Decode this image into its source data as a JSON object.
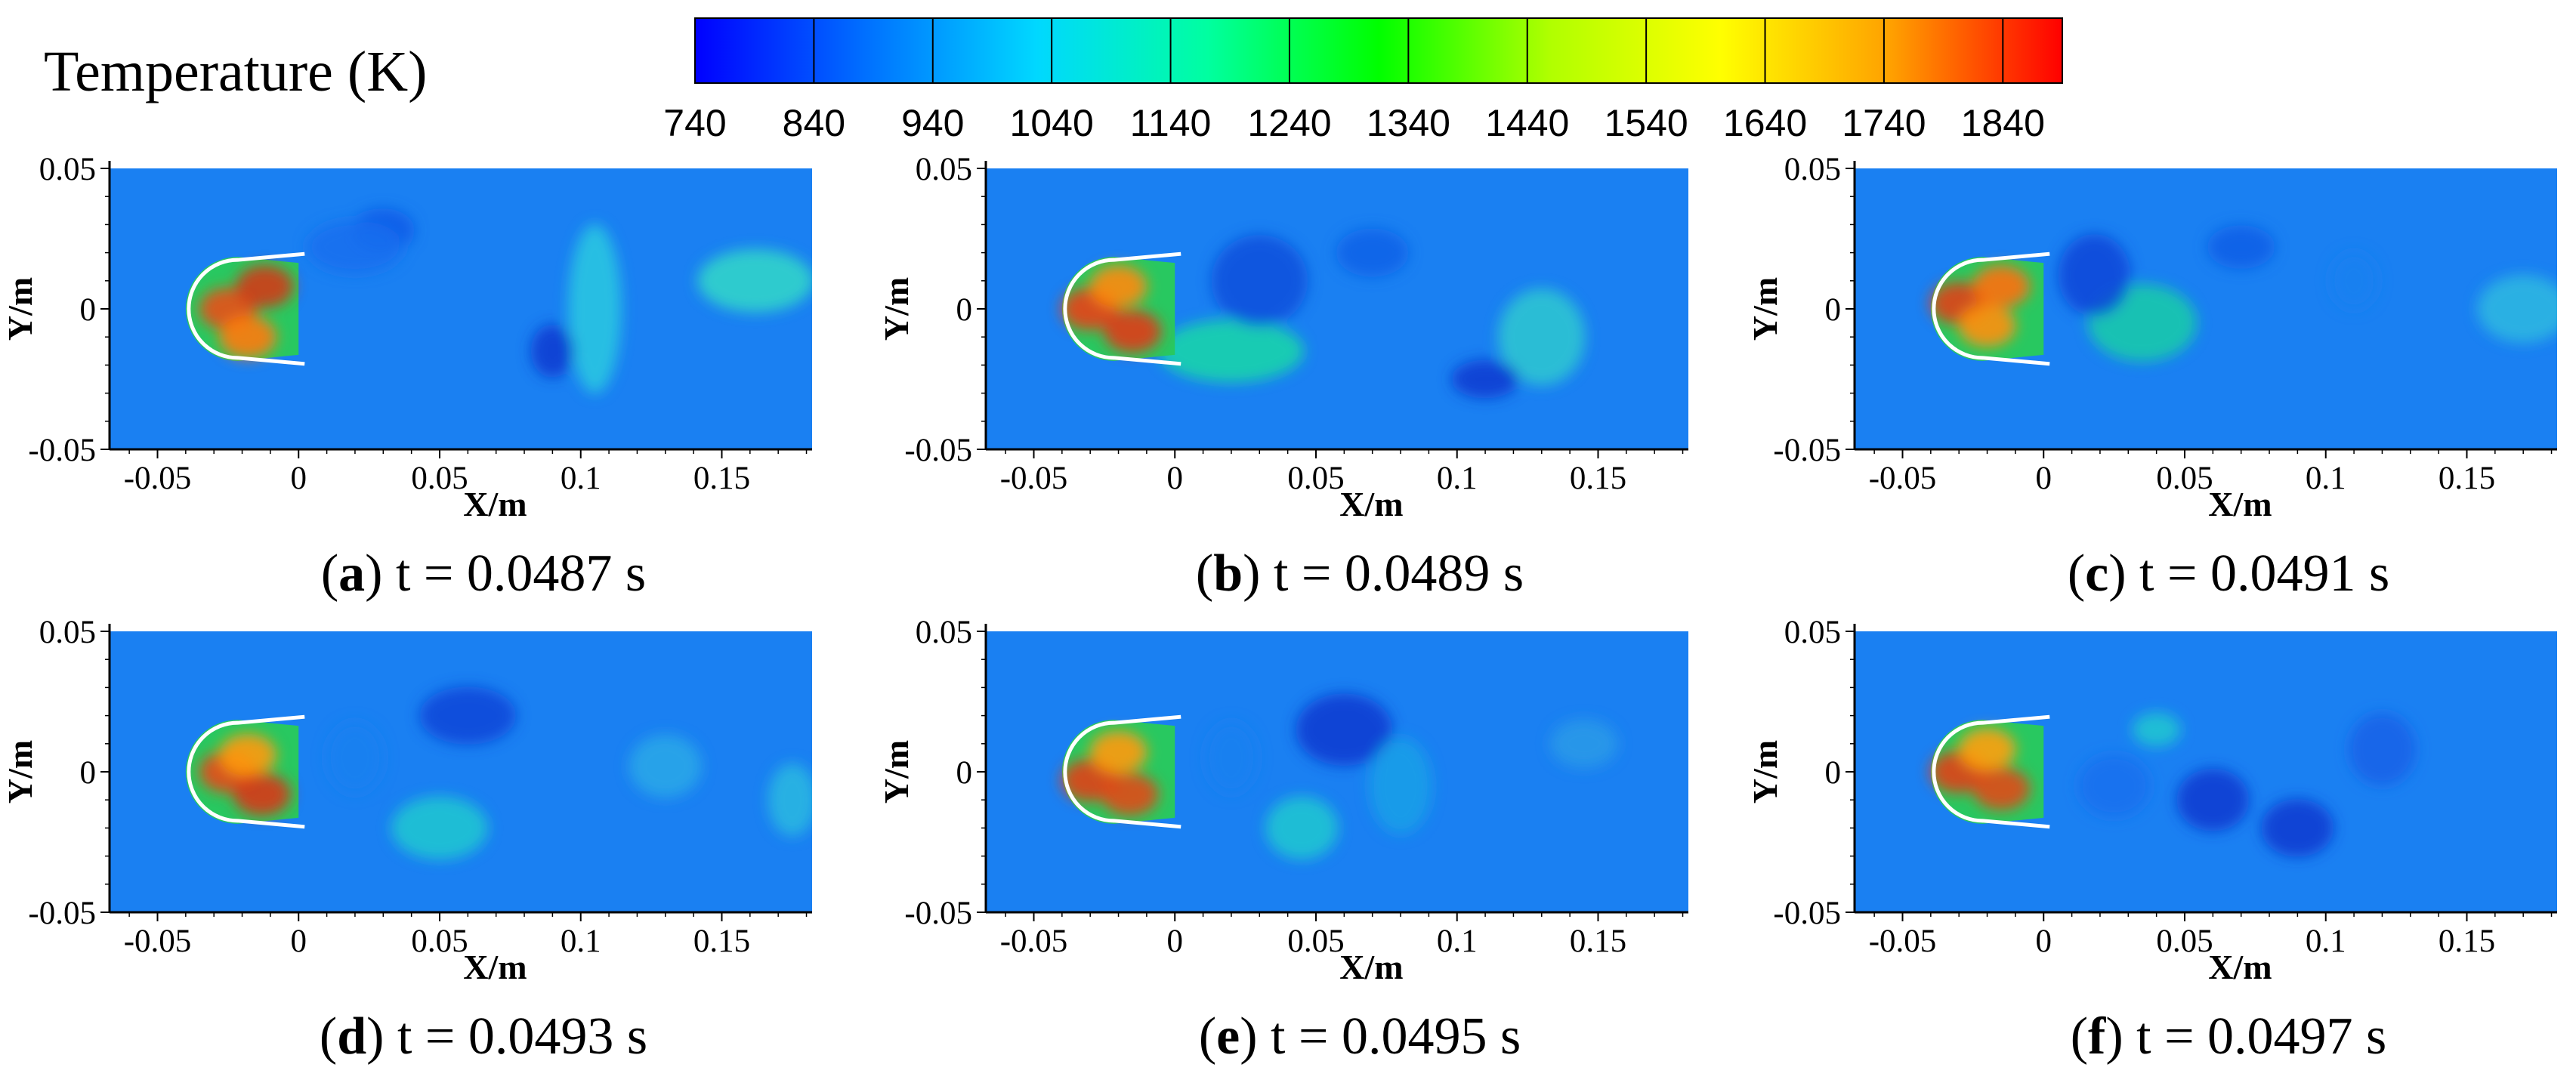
{
  "chart_data": {
    "type": "heatmap",
    "legend": {
      "title": "Temperature (K)",
      "ticks": [
        740,
        840,
        940,
        1040,
        1140,
        1240,
        1340,
        1440,
        1540,
        1640,
        1740,
        1840
      ],
      "range": [
        740,
        1890
      ],
      "colors": [
        "#0000ff",
        "#0070ff",
        "#00d8ff",
        "#00ffa0",
        "#00ff00",
        "#b0ff00",
        "#ffff00",
        "#ffa000",
        "#ff0000"
      ]
    },
    "x_axis": {
      "title": "X/m",
      "ticks": [
        "-0.05",
        "0",
        "0.05",
        "0.1",
        "0.15"
      ],
      "range": [
        -0.067,
        0.182
      ]
    },
    "y_axis": {
      "title": "Y/m",
      "ticks": [
        "0.05",
        "0",
        "-0.05"
      ],
      "range": [
        -0.05,
        0.05
      ]
    },
    "panels": [
      {
        "id": "a",
        "label": "a",
        "caption": "t = 0.0487 s"
      },
      {
        "id": "b",
        "label": "b",
        "caption": "t = 0.0489 s"
      },
      {
        "id": "c",
        "label": "c",
        "caption": "t = 0.0491 s"
      },
      {
        "id": "d",
        "label": "d",
        "caption": "t = 0.0493 s"
      },
      {
        "id": "e",
        "label": "e",
        "caption": "t = 0.0495 s"
      },
      {
        "id": "f",
        "label": "f",
        "caption": "t = 0.0497 s"
      }
    ]
  }
}
